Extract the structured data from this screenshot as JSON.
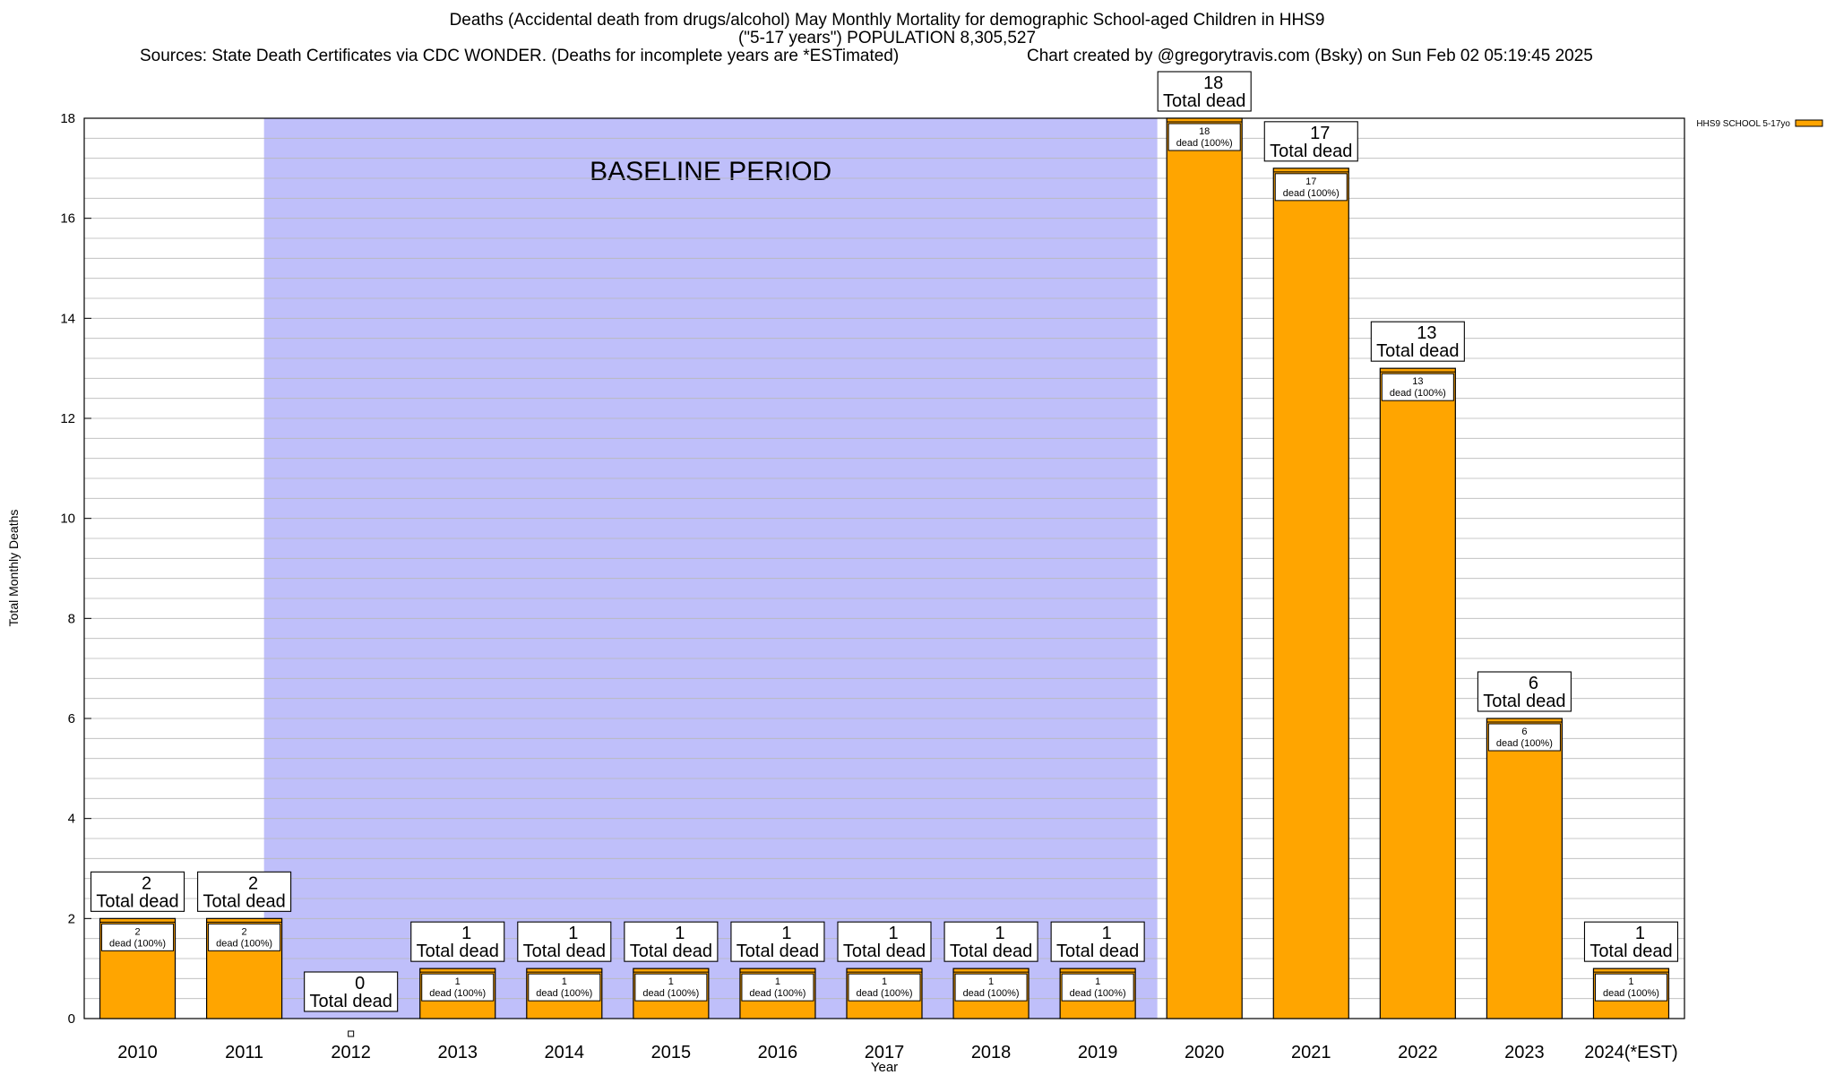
{
  "title_line1": "Deaths (Accidental death from drugs/alcohol) May Monthly Mortality for demographic School-aged Children in HHS9",
  "title_line2": "(\"5-17 years\") POPULATION 8,305,527",
  "title_line3": "Sources: State Death Certificates via CDC WONDER. (Deaths for incomplete years are *ESTimated)",
  "title_line4": "Chart created by @gregorytravis.com (Bsky) on Sun Feb 02 05:19:45 2025",
  "chart_data": {
    "type": "bar",
    "xlabel": "Year",
    "ylabel": "Total Monthly Deaths",
    "ylim": [
      0,
      18
    ],
    "y_ticks": [
      0,
      2,
      4,
      6,
      8,
      10,
      12,
      14,
      16,
      18
    ],
    "minor_grid_step": 0.4,
    "grid": true,
    "legend_position": "top-right",
    "categories": [
      "2010",
      "2011",
      "2012",
      "2013",
      "2014",
      "2015",
      "2016",
      "2017",
      "2018",
      "2019",
      "2020",
      "2021",
      "2022",
      "2023",
      "2024(*EST)"
    ],
    "series": [
      {
        "name": "HHS9 SCHOOL 5-17yo",
        "color": "#FFA500",
        "values": [
          2,
          2,
          0,
          1,
          1,
          1,
          1,
          1,
          1,
          1,
          18,
          17,
          13,
          6,
          1
        ]
      }
    ],
    "total_label": "Total dead",
    "inner_label": "dead (100%)",
    "baseline_period": {
      "label": "BASELINE PERIOD",
      "from": "2012",
      "to": "2019",
      "color": "#BFBFFA"
    }
  }
}
